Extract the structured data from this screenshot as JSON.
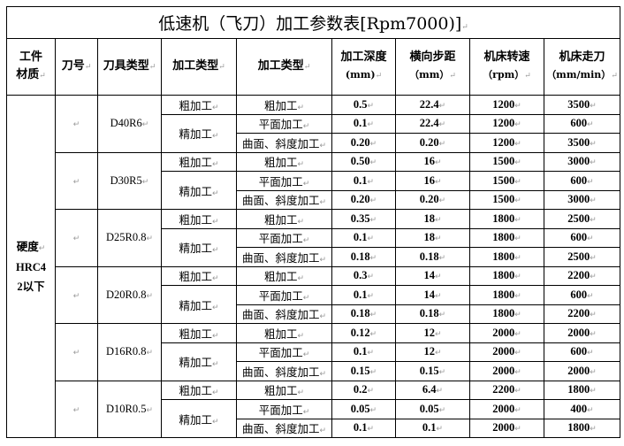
{
  "title": "低速机（飞刀）加工参数表[Rpm7000)]",
  "headers": [
    {
      "label": "工件",
      "label2": "材质"
    },
    {
      "label": "刀号"
    },
    {
      "label": "刀具类型"
    },
    {
      "label": "加工类型"
    },
    {
      "label": "加工类型"
    },
    {
      "label": "加工深度",
      "unit": "(mm)"
    },
    {
      "label": "横向步距",
      "unit": "（mm）"
    },
    {
      "label": "机床转速",
      "unit": "（rpm）"
    },
    {
      "label": "机床走刀",
      "unit": "（mm/min）"
    }
  ],
  "material": {
    "line1": "硬度",
    "line2": "HRC4",
    "line3": "2以下"
  },
  "rough_label": "粗加工",
  "finish_label": "精加工",
  "tools": [
    {
      "tool_no": "",
      "type": "D40R6",
      "rows": [
        {
          "op": "粗加工",
          "depth": "0.5",
          "step": "22.4",
          "rpm": "1200",
          "feed": "3500"
        },
        {
          "op": "平面加工",
          "depth": "0.1",
          "step": "22.4",
          "rpm": "1200",
          "feed": "600"
        },
        {
          "op": "曲面、斜度加工",
          "depth": "0.20",
          "step": "0.20",
          "rpm": "1200",
          "feed": "3500"
        }
      ]
    },
    {
      "tool_no": "",
      "type": "D30R5",
      "rows": [
        {
          "op": "粗加工",
          "depth": "0.50",
          "step": "16",
          "rpm": "1500",
          "feed": "3000"
        },
        {
          "op": "平面加工",
          "depth": "0.1",
          "step": "16",
          "rpm": "1500",
          "feed": "600"
        },
        {
          "op": "曲面、斜度加工",
          "depth": "0.20",
          "step": "0.20",
          "rpm": "1500",
          "feed": "3000"
        }
      ]
    },
    {
      "tool_no": "",
      "type": "D25R0.8",
      "rows": [
        {
          "op": "粗加工",
          "depth": "0.35",
          "step": "18",
          "rpm": "1800",
          "feed": "2500"
        },
        {
          "op": "平面加工",
          "depth": "0.1",
          "step": "18",
          "rpm": "1800",
          "feed": "600"
        },
        {
          "op": "曲面、斜度加工",
          "depth": "0.18",
          "step": "0.18",
          "rpm": "1800",
          "feed": "2500"
        }
      ]
    },
    {
      "tool_no": "",
      "type": "D20R0.8",
      "rows": [
        {
          "op": "粗加工",
          "depth": "0.3",
          "step": "14",
          "rpm": "1800",
          "feed": "2200"
        },
        {
          "op": "平面加工",
          "depth": "0.1",
          "step": "14",
          "rpm": "1800",
          "feed": "600"
        },
        {
          "op": "曲面、斜度加工",
          "depth": "0.18",
          "step": "0.18",
          "rpm": "1800",
          "feed": "2200"
        }
      ]
    },
    {
      "tool_no": "",
      "type": "D16R0.8",
      "rows": [
        {
          "op": "粗加工",
          "depth": "0.12",
          "step": "12",
          "rpm": "2000",
          "feed": "2000"
        },
        {
          "op": "平面加工",
          "depth": "0.1",
          "step": "12",
          "rpm": "2000",
          "feed": "600"
        },
        {
          "op": "曲面、斜度加工",
          "depth": "0.15",
          "step": "0.15",
          "rpm": "2000",
          "feed": "2000"
        }
      ]
    },
    {
      "tool_no": "",
      "type": "D10R0.5",
      "rows": [
        {
          "op": "粗加工",
          "depth": "0.2",
          "step": "6.4",
          "rpm": "2200",
          "feed": "1800"
        },
        {
          "op": "平面加工",
          "depth": "0.05",
          "step": "0.05",
          "rpm": "2000",
          "feed": "400"
        },
        {
          "op": "曲面、斜度加工",
          "depth": "0.1",
          "step": "0.1",
          "rpm": "2000",
          "feed": "1800"
        }
      ]
    }
  ]
}
